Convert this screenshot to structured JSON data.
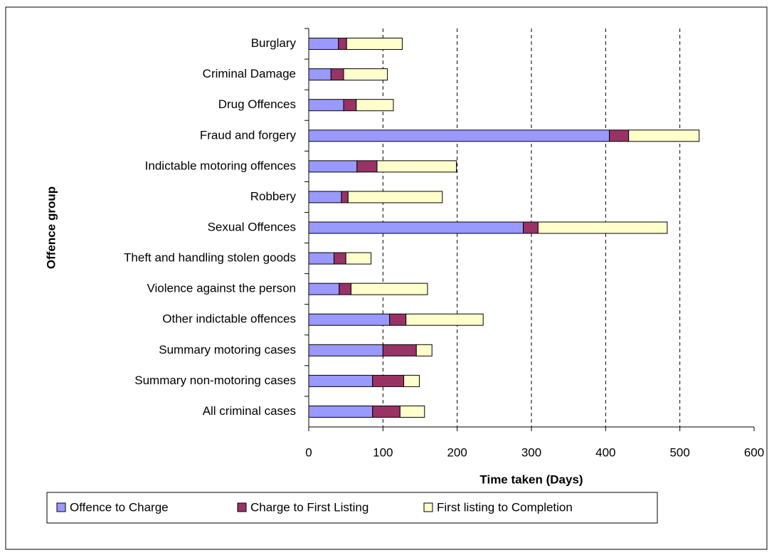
{
  "chart_data": {
    "type": "stacked-bar-horizontal",
    "x_label": "Time taken (Days)",
    "y_label": "Offence group",
    "categories": [
      "Burglary",
      "Criminal Damage",
      "Drug Offences",
      "Fraud and forgery",
      "Indictable motoring offences",
      "Robbery",
      "Sexual Offences",
      "Theft and handling stolen goods",
      "Violence against the person",
      "Other indictable offences",
      "Summary motoring cases",
      "Summary non-motoring cases",
      "All criminal cases"
    ],
    "series": [
      {
        "name": "Offence to Charge",
        "color": "#9999ff",
        "values": [
          40,
          30,
          47,
          405,
          65,
          44,
          289,
          34,
          41,
          109,
          100,
          86,
          86
        ]
      },
      {
        "name": "Charge to First Listing",
        "color": "#993366",
        "values": [
          11,
          17,
          17,
          26,
          27,
          9,
          20,
          16,
          16,
          22,
          45,
          42,
          37
        ]
      },
      {
        "name": "First listing to Completion",
        "color": "#ffffcc",
        "values": [
          75,
          59,
          50,
          95,
          107,
          127,
          174,
          34,
          103,
          104,
          21,
          21,
          33
        ]
      }
    ],
    "xlim": [
      0,
      600
    ],
    "xticks": [
      0,
      100,
      200,
      300,
      400,
      500,
      600
    ],
    "grid": true,
    "legend": "bottom"
  }
}
